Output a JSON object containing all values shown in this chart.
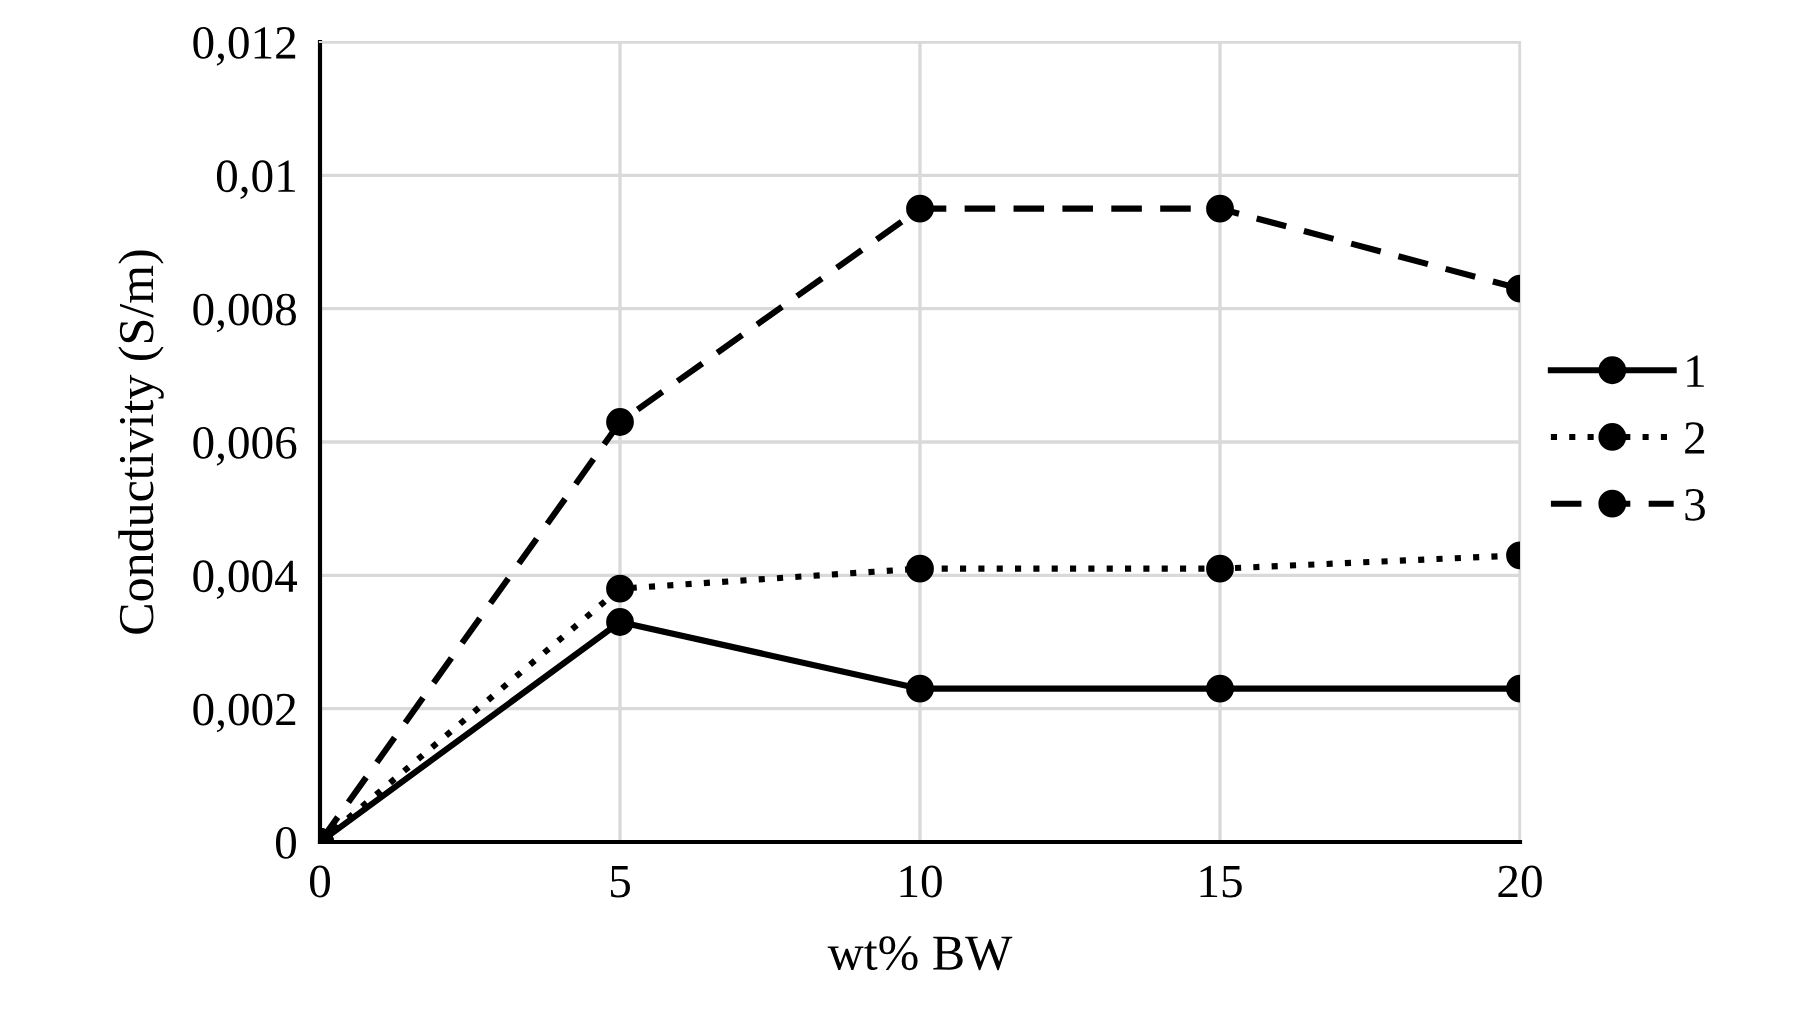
{
  "chart_data": {
    "type": "line",
    "xlabel": "wt% BW",
    "ylabel": "Conductivity (S/m)",
    "x": [
      0,
      5,
      10,
      15,
      20
    ],
    "series": [
      {
        "name": "1",
        "color": "#000000",
        "line_style": "solid",
        "values": [
          0,
          0.0033,
          0.0023,
          0.0023,
          0.0023
        ]
      },
      {
        "name": "2",
        "color": "#000000",
        "line_style": "dotted",
        "values": [
          0,
          0.0038,
          0.0041,
          0.0041,
          0.0043
        ]
      },
      {
        "name": "3",
        "color": "#000000",
        "line_style": "dashed",
        "values": [
          0,
          0.0063,
          0.0095,
          0.0095,
          0.0083
        ]
      }
    ],
    "xlim": [
      0,
      20
    ],
    "xticks": [
      0,
      5,
      10,
      15,
      20
    ],
    "ylim": [
      0,
      0.012
    ],
    "yticks": [
      {
        "value": 0,
        "label": "0"
      },
      {
        "value": 0.002,
        "label": "0,002"
      },
      {
        "value": 0.004,
        "label": "0,004"
      },
      {
        "value": 0.006,
        "label": "0,006"
      },
      {
        "value": 0.008,
        "label": "0,008"
      },
      {
        "value": 0.01,
        "label": "0,01"
      },
      {
        "value": 0.012,
        "label": "0,012"
      }
    ],
    "grid": true,
    "legend": "right",
    "marker": "circle"
  }
}
